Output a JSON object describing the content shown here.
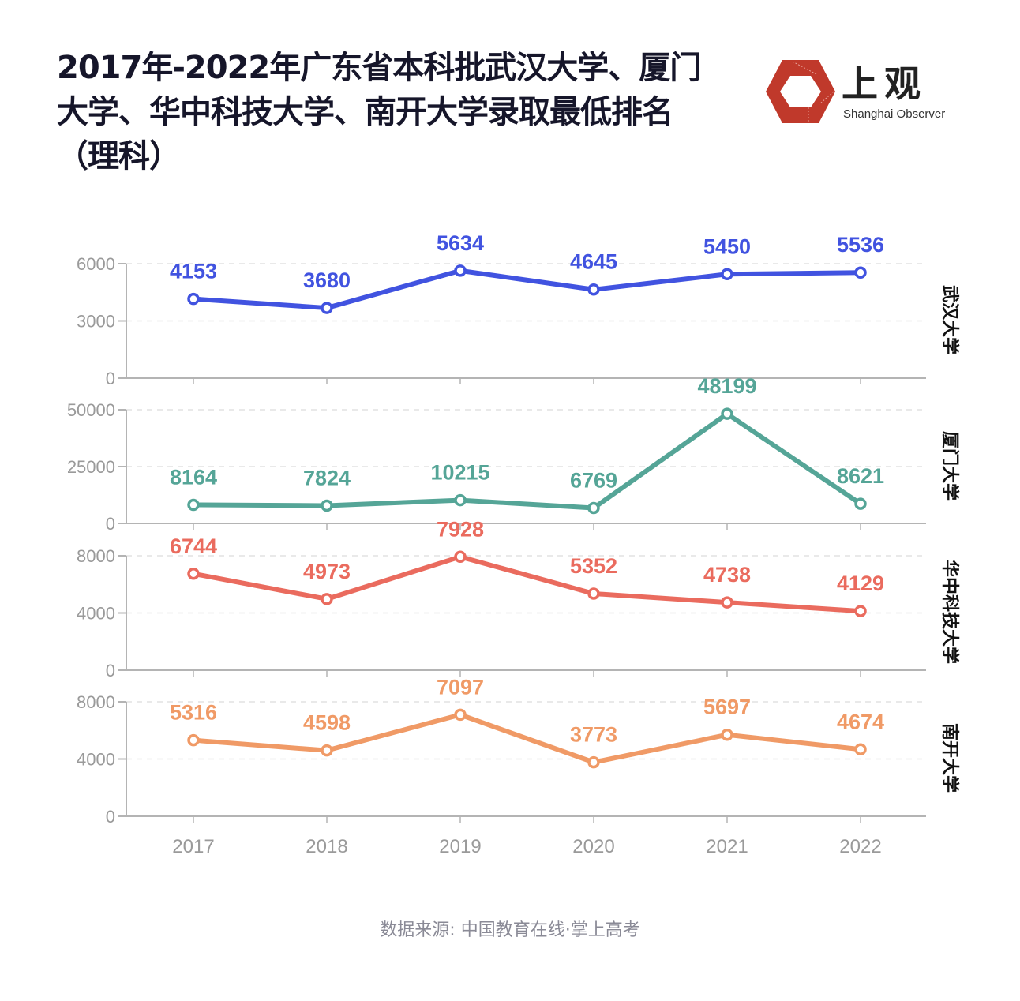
{
  "title": "2017年-2022年广东省本科批武汉大学、厦门大学、华中科技大学、南开大学录取最低排名（理科）",
  "logo": {
    "name_cn": "上观",
    "name_en": "Shanghai Observer",
    "color": "#c0392b"
  },
  "source": "数据来源: 中国教育在线·掌上高考",
  "chart_data": {
    "type": "line",
    "title": "2017年-2022年广东省本科批武汉大学、厦门大学、华中科技大学、南开大学录取最低排名（理科）",
    "xlabel": "",
    "ylabel": "",
    "x": [
      "2017",
      "2018",
      "2019",
      "2020",
      "2021",
      "2022"
    ],
    "grid": "horizontal-dashed",
    "layout": "small-multiples-vertical",
    "series": [
      {
        "name": "武汉大学",
        "color": "#4153e0",
        "values": [
          4153,
          3680,
          5634,
          4645,
          5450,
          5536
        ],
        "ylim": [
          0,
          6000
        ],
        "yticks": [
          0,
          3000,
          6000
        ]
      },
      {
        "name": "厦门大学",
        "color": "#55a597",
        "values": [
          8164,
          7824,
          10215,
          6769,
          48199,
          8621
        ],
        "ylim": [
          0,
          50000
        ],
        "yticks": [
          0,
          25000,
          50000
        ]
      },
      {
        "name": "华中科技大学",
        "color": "#ea6b5e",
        "values": [
          6744,
          4973,
          7928,
          5352,
          4738,
          4129
        ],
        "ylim": [
          0,
          8000
        ],
        "yticks": [
          0,
          4000,
          8000
        ]
      },
      {
        "name": "南开大学",
        "color": "#f09a66",
        "values": [
          5316,
          4598,
          7097,
          3773,
          5697,
          4674
        ],
        "ylim": [
          0,
          8000
        ],
        "yticks": [
          0,
          4000,
          8000
        ]
      }
    ]
  }
}
